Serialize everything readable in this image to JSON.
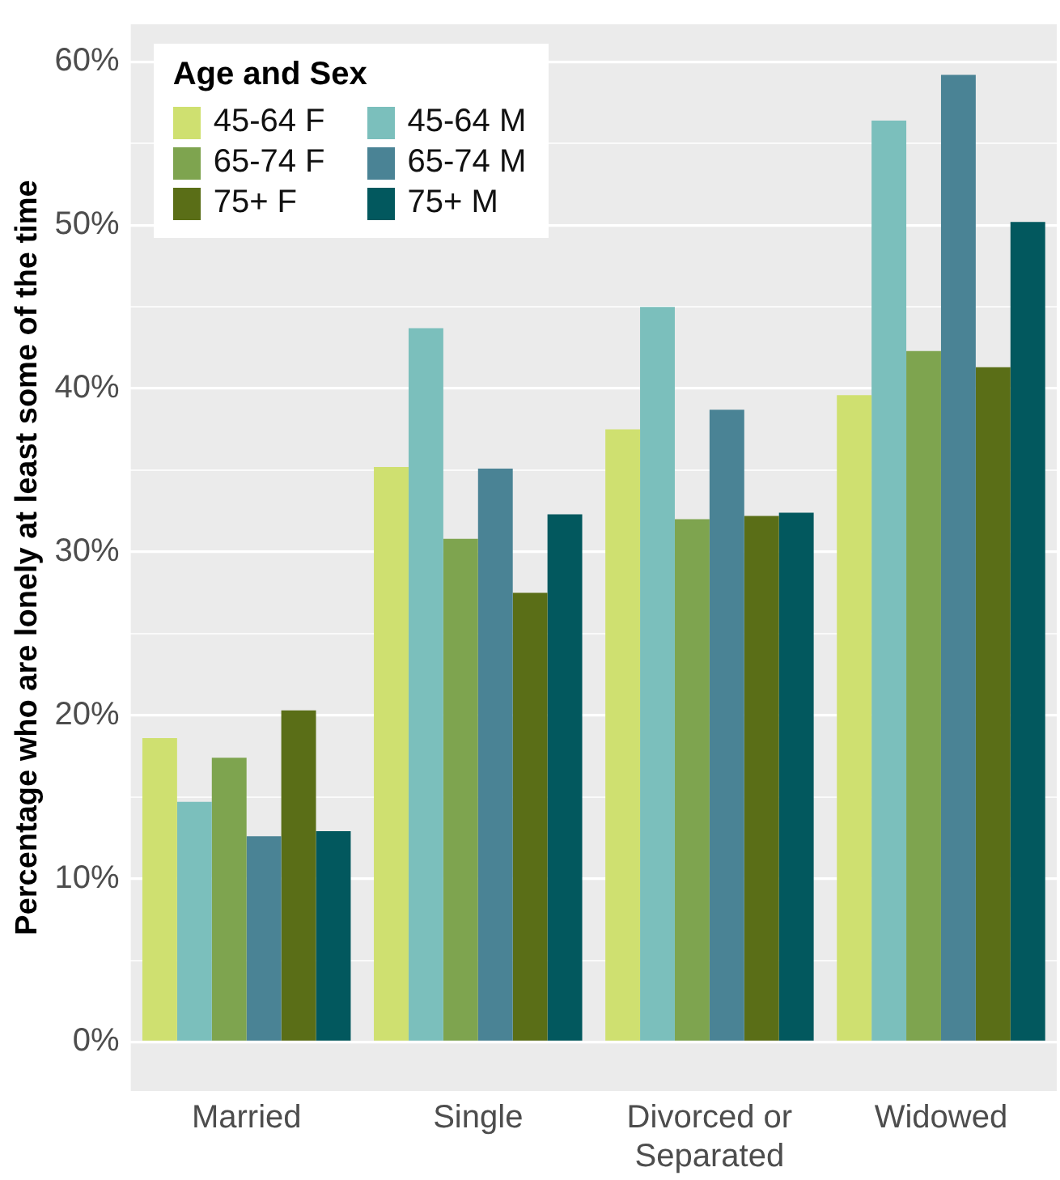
{
  "chart_data": {
    "type": "bar",
    "ylabel": "Percentage who are lonely at least some of the time",
    "legend_title": "Age and Sex",
    "legend": "top left",
    "grid": "y",
    "categories": [
      "Married",
      "Single",
      "Divorced or Separated",
      "Widowed"
    ],
    "series": [
      {
        "name": "45-64 F",
        "color": "#cfe070",
        "values": [
          18.6,
          35.2,
          37.5,
          39.6
        ]
      },
      {
        "name": "45-64 M",
        "color": "#7bbfbc",
        "values": [
          14.7,
          43.7,
          45.0,
          56.4
        ]
      },
      {
        "name": "65-74 F",
        "color": "#7ea44f",
        "values": [
          17.4,
          30.8,
          32.0,
          42.3
        ]
      },
      {
        "name": "65-74 M",
        "color": "#4a8395",
        "values": [
          12.6,
          35.1,
          38.7,
          59.2
        ]
      },
      {
        "name": "75+ F",
        "color": "#5a6e17",
        "values": [
          20.3,
          27.5,
          32.2,
          41.3
        ]
      },
      {
        "name": "75+ M",
        "color": "#02585e",
        "values": [
          12.9,
          32.3,
          32.4,
          50.2
        ]
      }
    ],
    "ylim": [
      -3,
      62.3
    ],
    "yticks": [
      {
        "value": 0,
        "label": "0%"
      },
      {
        "value": 5,
        "label": null
      },
      {
        "value": 10,
        "label": "10%"
      },
      {
        "value": 15,
        "label": null
      },
      {
        "value": 20,
        "label": "20%"
      },
      {
        "value": 25,
        "label": null
      },
      {
        "value": 30,
        "label": "30%"
      },
      {
        "value": 35,
        "label": null
      },
      {
        "value": 40,
        "label": "40%"
      },
      {
        "value": 45,
        "label": null
      },
      {
        "value": 50,
        "label": "50%"
      },
      {
        "value": 55,
        "label": null
      },
      {
        "value": 60,
        "label": "60%"
      }
    ]
  }
}
